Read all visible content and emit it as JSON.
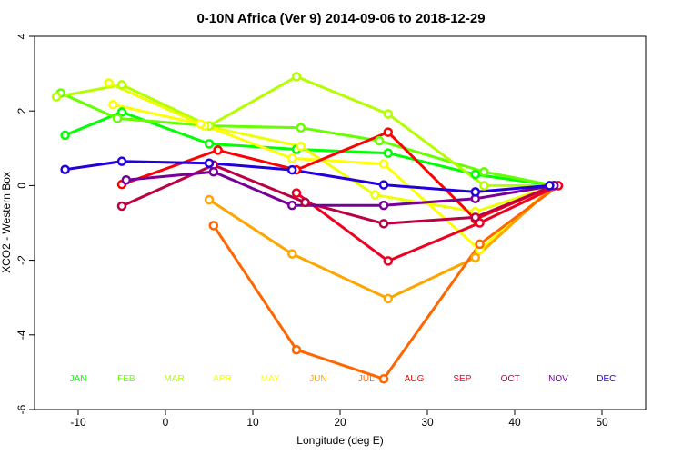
{
  "chart_data": {
    "type": "line",
    "title": "0-10N Africa (Ver 9)   2014-09-06 to 2018-12-29",
    "xlabel": "Longitude (deg E)",
    "ylabel": "XCO2 - Western Box",
    "xlim": [
      -15,
      55
    ],
    "ylim": [
      -6,
      4
    ],
    "xticks": [
      -10,
      0,
      10,
      20,
      30,
      40,
      50
    ],
    "yticks": [
      -6,
      -4,
      -2,
      0,
      2,
      4
    ],
    "grid": false,
    "series": [
      {
        "name": "JAN",
        "color": "#00ff00",
        "points": [
          [
            -11.5,
            1.35
          ],
          [
            -5.0,
            1.97
          ],
          [
            5.0,
            1.12
          ],
          [
            15.0,
            0.97
          ],
          [
            25.5,
            0.87
          ],
          [
            35.5,
            0.3
          ],
          [
            44.5,
            0.0
          ]
        ]
      },
      {
        "name": "FEB",
        "color": "#66ff00",
        "points": [
          [
            -12.0,
            2.48
          ],
          [
            -5.5,
            1.8
          ],
          [
            5.0,
            1.6
          ],
          [
            15.5,
            1.55
          ],
          [
            24.5,
            1.2
          ],
          [
            36.5,
            0.37
          ],
          [
            44.5,
            0.0
          ]
        ]
      },
      {
        "name": "MAR",
        "color": "#b3ff00",
        "points": [
          [
            -12.5,
            2.38
          ],
          [
            -5.0,
            2.7
          ],
          [
            5.0,
            1.6
          ],
          [
            15.0,
            2.92
          ],
          [
            25.5,
            1.92
          ],
          [
            36.5,
            0.0
          ],
          [
            44.5,
            0.0
          ]
        ]
      },
      {
        "name": "APR",
        "color": "#eeff00",
        "points": [
          [
            -6.5,
            2.75
          ],
          [
            4.5,
            1.6
          ],
          [
            15.5,
            1.05
          ],
          [
            24.0,
            -0.25
          ],
          [
            35.5,
            -0.7
          ],
          [
            44.5,
            0.0
          ]
        ]
      },
      {
        "name": "MAY",
        "color": "#ffff00",
        "points": [
          [
            -6.0,
            2.17
          ],
          [
            4.0,
            1.65
          ],
          [
            14.5,
            0.73
          ],
          [
            25.0,
            0.58
          ],
          [
            36.0,
            -1.72
          ],
          [
            44.5,
            0.0
          ]
        ]
      },
      {
        "name": "JUN",
        "color": "#ffa500",
        "points": [
          [
            5.0,
            -0.38
          ],
          [
            14.5,
            -1.83
          ],
          [
            25.5,
            -3.03
          ],
          [
            35.5,
            -1.93
          ],
          [
            44.5,
            0.0
          ]
        ]
      },
      {
        "name": "JUL",
        "color": "#ff6600",
        "points": [
          [
            5.5,
            -1.07
          ],
          [
            15.0,
            -4.4
          ],
          [
            25.0,
            -5.18
          ],
          [
            36.0,
            -1.57
          ],
          [
            45.0,
            0.0
          ]
        ]
      },
      {
        "name": "AUG",
        "color": "#ff0000",
        "points": [
          [
            -5.0,
            0.03
          ],
          [
            6.0,
            0.95
          ],
          [
            15.0,
            0.42
          ],
          [
            25.5,
            1.43
          ],
          [
            35.5,
            -0.9
          ],
          [
            44.5,
            0.0
          ]
        ]
      },
      {
        "name": "SEP",
        "color": "#ee0022",
        "points": [
          [
            15.0,
            -0.2
          ],
          [
            25.5,
            -2.02
          ],
          [
            36.0,
            -1.0
          ],
          [
            45.0,
            0.0
          ]
        ]
      },
      {
        "name": "OCT",
        "color": "#bb0044",
        "points": [
          [
            -5.0,
            -0.55
          ],
          [
            5.5,
            0.55
          ],
          [
            16.0,
            -0.45
          ],
          [
            25.0,
            -1.02
          ],
          [
            35.5,
            -0.85
          ],
          [
            44.5,
            0.0
          ]
        ]
      },
      {
        "name": "NOV",
        "color": "#770099",
        "points": [
          [
            -4.5,
            0.15
          ],
          [
            5.5,
            0.37
          ],
          [
            14.5,
            -0.53
          ],
          [
            25.0,
            -0.53
          ],
          [
            35.5,
            -0.35
          ],
          [
            44.5,
            0.0
          ]
        ]
      },
      {
        "name": "DEC",
        "color": "#2200dd",
        "points": [
          [
            -11.5,
            0.43
          ],
          [
            -5.0,
            0.65
          ],
          [
            5.0,
            0.6
          ],
          [
            14.5,
            0.42
          ],
          [
            25.0,
            0.02
          ],
          [
            35.5,
            -0.17
          ],
          [
            44.0,
            0.0
          ]
        ]
      }
    ],
    "month_labels": [
      {
        "text": "JAN",
        "color": "#00ff00",
        "x": -10.0,
        "y": -5.15
      },
      {
        "text": "FEB",
        "color": "#66ff00",
        "x": -4.5,
        "y": -5.15
      },
      {
        "text": "MAR",
        "color": "#b3ff00",
        "x": 1.0,
        "y": -5.15
      },
      {
        "text": "APR",
        "color": "#eeff00",
        "x": 6.5,
        "y": -5.15
      },
      {
        "text": "MAY",
        "color": "#ffff00",
        "x": 12.0,
        "y": -5.15
      },
      {
        "text": "JUN",
        "color": "#ffa500",
        "x": 17.5,
        "y": -5.15
      },
      {
        "text": "JUL",
        "color": "#ff6600",
        "x": 23.0,
        "y": -5.15
      },
      {
        "text": "AUG",
        "color": "#ff0000",
        "x": 28.5,
        "y": -5.15
      },
      {
        "text": "SEP",
        "color": "#ee0022",
        "x": 34.0,
        "y": -5.15
      },
      {
        "text": "OCT",
        "color": "#bb0044",
        "x": 39.5,
        "y": -5.15
      },
      {
        "text": "NOV",
        "color": "#770099",
        "x": 45.0,
        "y": -5.15
      },
      {
        "text": "DEC",
        "color": "#2200dd",
        "x": 50.5,
        "y": -5.15
      }
    ]
  }
}
